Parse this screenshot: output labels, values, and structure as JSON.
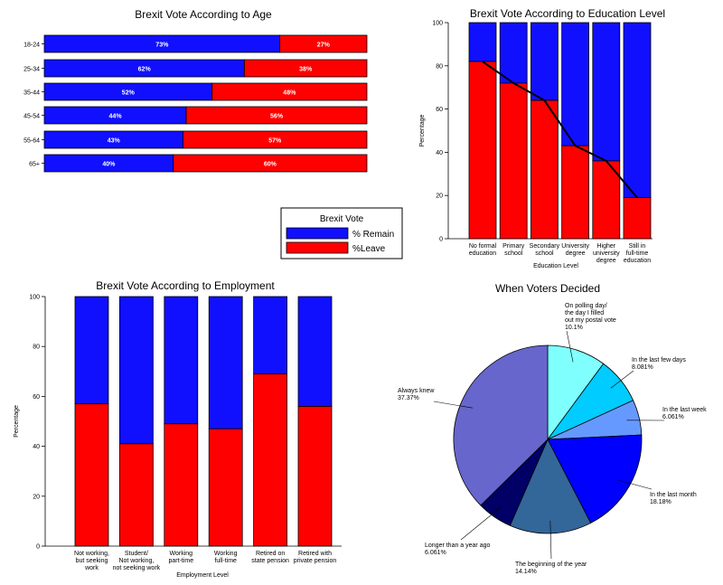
{
  "colors": {
    "remain": "#1010ff",
    "leave": "#ff0000",
    "line": "#000000"
  },
  "legend": {
    "title": "Brexit Vote",
    "items": [
      "% Remain",
      "%Leave"
    ]
  },
  "chart_data": [
    {
      "id": "age",
      "type": "bar",
      "orientation": "horizontal",
      "stacked": true,
      "title": "Brexit Vote According to Age",
      "categories": [
        "18-24",
        "25-34",
        "35-44",
        "45-54",
        "55-64",
        "65+"
      ],
      "series": [
        {
          "name": "% Remain",
          "values": [
            73,
            62,
            52,
            44,
            43,
            40
          ]
        },
        {
          "name": "%Leave",
          "values": [
            27,
            38,
            48,
            56,
            57,
            60
          ]
        }
      ],
      "labels": [
        [
          "73%",
          "62%",
          "52%",
          "44%",
          "43%",
          "40%"
        ],
        [
          "27%",
          "38%",
          "48%",
          "56%",
          "57%",
          "60%"
        ]
      ],
      "xlim": [
        0,
        100
      ]
    },
    {
      "id": "education",
      "type": "bar",
      "stacked": true,
      "title": "Brexit Vote According to Education Level",
      "xlabel": "Education Level",
      "ylabel": "Percentage",
      "ylim": [
        0,
        100
      ],
      "yticks": [
        "0",
        "20",
        "40",
        "60",
        "80",
        "100"
      ],
      "categories": [
        [
          "No formal",
          "education"
        ],
        [
          "Primary",
          "school"
        ],
        [
          "Secondary",
          "school"
        ],
        [
          "University",
          "degree"
        ],
        [
          "Higher",
          "university",
          "degree"
        ],
        [
          "Still in",
          "full-time",
          "education"
        ]
      ],
      "series": [
        {
          "name": "%Leave",
          "values": [
            82,
            72,
            64,
            43,
            36,
            19
          ]
        }
      ],
      "trend_line": true
    },
    {
      "id": "employment",
      "type": "bar",
      "stacked": true,
      "title": "Brexit Vote According to Employment",
      "xlabel": "Employment Level",
      "ylabel": "Percentage",
      "ylim": [
        0,
        100
      ],
      "yticks": [
        "0",
        "20",
        "40",
        "60",
        "80",
        "100"
      ],
      "categories": [
        [
          "Not working,",
          "but seeking",
          "work"
        ],
        [
          "Student/",
          "Not working,",
          "not seeking work"
        ],
        [
          "Working",
          "part-time"
        ],
        [
          "Working",
          "full-time"
        ],
        [
          "Retired on",
          "state pension"
        ],
        [
          "Retired with",
          "private pension"
        ]
      ],
      "series": [
        {
          "name": "%Leave",
          "values": [
            57,
            41,
            49,
            47,
            69,
            56
          ]
        }
      ]
    },
    {
      "id": "decided",
      "type": "pie",
      "title": "When Voters Decided",
      "slices": [
        {
          "label": [
            "On polling day/",
            "the day I filled",
            "out my postal vote",
            "10.1%"
          ],
          "value": 10.1,
          "color": "#80ffff"
        },
        {
          "label": [
            "In the last few days",
            "8.081%"
          ],
          "value": 8.081,
          "color": "#00ccff"
        },
        {
          "label": [
            "In the last week",
            "6.061%"
          ],
          "value": 6.061,
          "color": "#6699ff"
        },
        {
          "label": [
            "In the last month",
            "18.18%"
          ],
          "value": 18.18,
          "color": "#0000ff"
        },
        {
          "label": [
            "The beginning of the year",
            "14.14%"
          ],
          "value": 14.14,
          "color": "#336699"
        },
        {
          "label": [
            "Longer than a year ago",
            "6.061%"
          ],
          "value": 6.061,
          "color": "#000066"
        },
        {
          "label": [
            "Always knew",
            "37.37%"
          ],
          "value": 37.37,
          "color": "#6666cc"
        }
      ]
    }
  ]
}
